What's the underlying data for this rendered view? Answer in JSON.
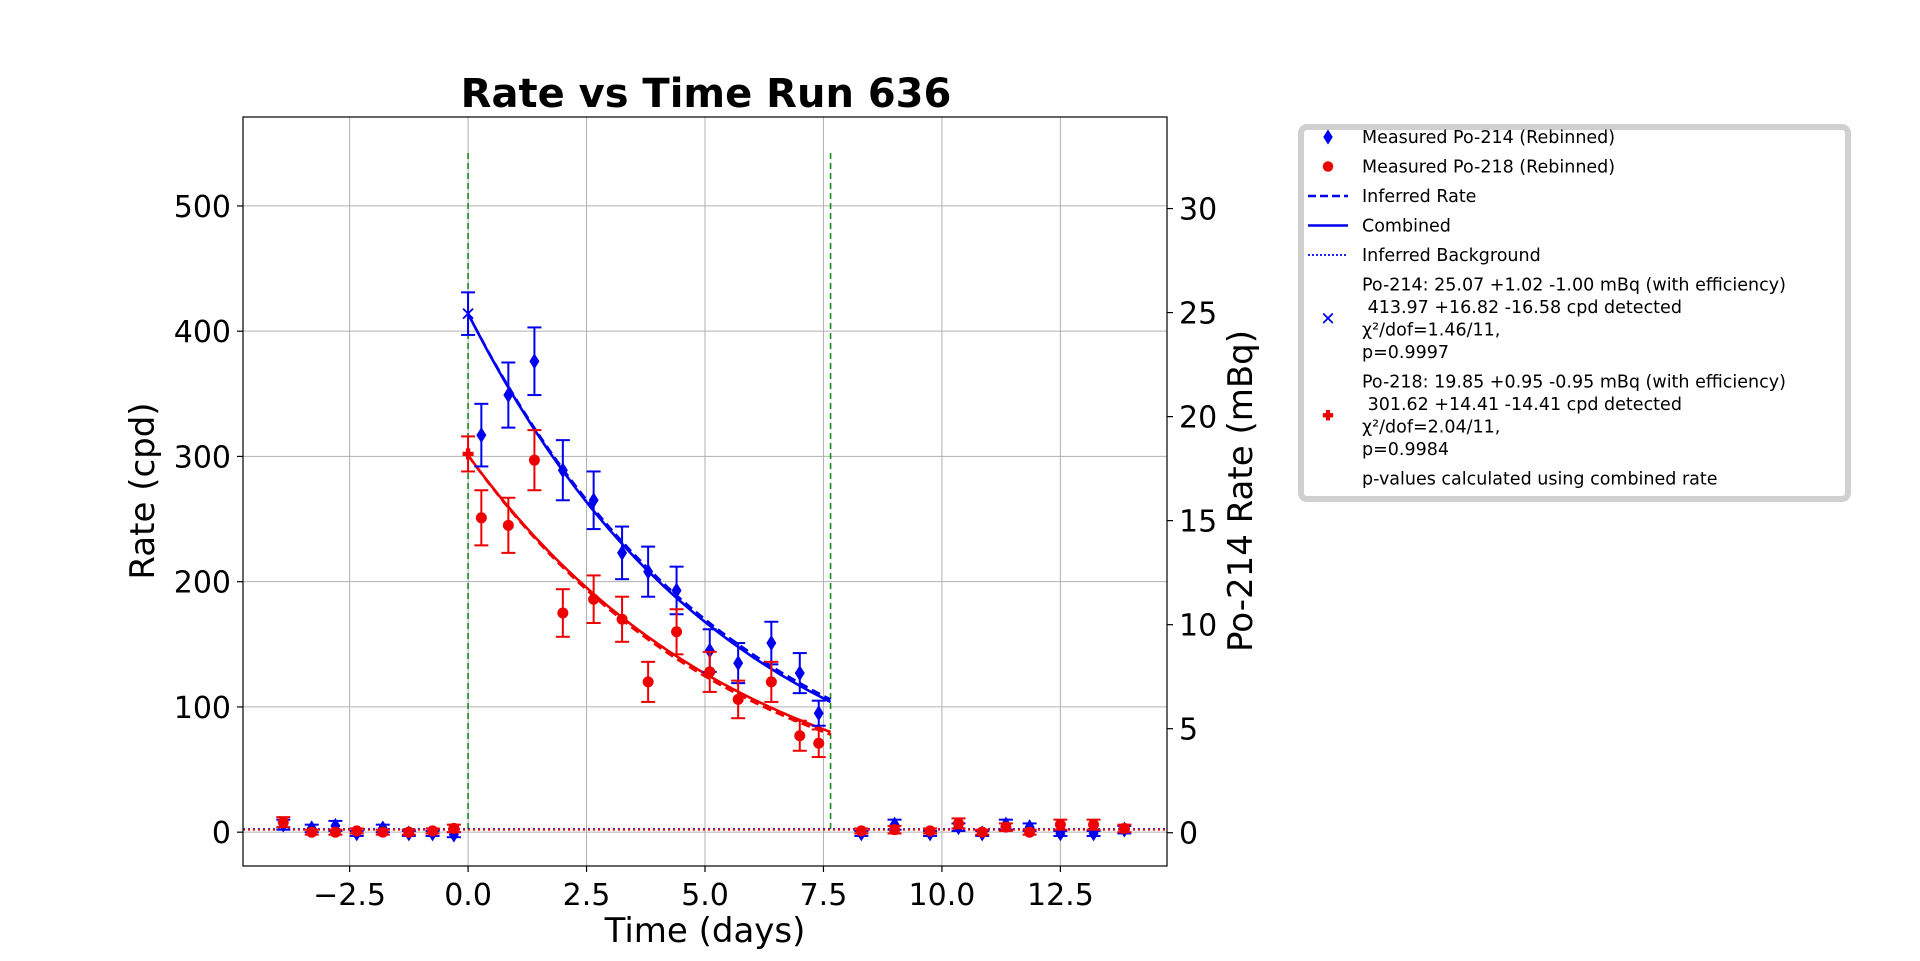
{
  "chart_data": {
    "type": "scatter",
    "title": "Rate vs Time Run 636",
    "xlabel": "Time (days)",
    "ylabel": "Rate (cpd)",
    "ylabel_right": "Po-214 Rate (mBq)",
    "xlim": [
      -4.75,
      14.75
    ],
    "ylim": [
      -27,
      571
    ],
    "ylim_right": [
      -1.6,
      34.4
    ],
    "x_ticks": [
      -2.5,
      0.0,
      2.5,
      5.0,
      7.5,
      10.0,
      12.5
    ],
    "x_tick_labels": [
      "−2.5",
      "0.0",
      "2.5",
      "5.0",
      "7.5",
      "10.0",
      "12.5"
    ],
    "y_ticks": [
      0,
      100,
      200,
      300,
      400,
      500
    ],
    "y_tick_labels": [
      "0",
      "100",
      "200",
      "300",
      "400",
      "500"
    ],
    "y_right_ticks": [
      0,
      5,
      10,
      15,
      20,
      25,
      30
    ],
    "y_right_tick_labels": [
      "0",
      "5",
      "10",
      "15",
      "20",
      "25",
      "30"
    ],
    "grid": true,
    "legend_position": "outside-right",
    "vlines": [
      0.0,
      7.65
    ],
    "series": [
      {
        "name": "Measured Po-214 (Rebinned)",
        "color": "#0000ee",
        "marker": "diamond",
        "points": [
          {
            "x": -3.9,
            "y": 6,
            "err": 4
          },
          {
            "x": -3.3,
            "y": 3,
            "err": 3
          },
          {
            "x": -2.8,
            "y": 5,
            "err": 4
          },
          {
            "x": -2.35,
            "y": -1,
            "err": 2
          },
          {
            "x": -1.8,
            "y": 3,
            "err": 3
          },
          {
            "x": -1.25,
            "y": -1,
            "err": 2
          },
          {
            "x": -0.75,
            "y": -1,
            "err": 2
          },
          {
            "x": -0.3,
            "y": -2,
            "err": 2
          },
          {
            "x": 0.28,
            "y": 317,
            "err": 25
          },
          {
            "x": 0.85,
            "y": 349,
            "err": 26
          },
          {
            "x": 1.4,
            "y": 376,
            "err": 27
          },
          {
            "x": 2.0,
            "y": 289,
            "err": 24
          },
          {
            "x": 2.65,
            "y": 265,
            "err": 23
          },
          {
            "x": 3.25,
            "y": 223,
            "err": 21
          },
          {
            "x": 3.8,
            "y": 208,
            "err": 20
          },
          {
            "x": 4.4,
            "y": 193,
            "err": 19
          },
          {
            "x": 5.1,
            "y": 145,
            "err": 17
          },
          {
            "x": 5.7,
            "y": 135,
            "err": 16
          },
          {
            "x": 6.4,
            "y": 151,
            "err": 17
          },
          {
            "x": 7.0,
            "y": 127,
            "err": 16
          },
          {
            "x": 7.4,
            "y": 95,
            "err": 10
          },
          {
            "x": 8.3,
            "y": -1,
            "err": 2
          },
          {
            "x": 9.0,
            "y": 6,
            "err": 4
          },
          {
            "x": 9.75,
            "y": -1,
            "err": 2
          },
          {
            "x": 10.35,
            "y": 4,
            "err": 3
          },
          {
            "x": 10.85,
            "y": -1,
            "err": 2
          },
          {
            "x": 11.35,
            "y": 6,
            "err": 4
          },
          {
            "x": 11.85,
            "y": 4,
            "err": 3
          },
          {
            "x": 12.5,
            "y": -1,
            "err": 2
          },
          {
            "x": 13.2,
            "y": -1,
            "err": 2
          },
          {
            "x": 13.85,
            "y": 2,
            "err": 3
          }
        ]
      },
      {
        "name": "Measured Po-218 (Rebinned)",
        "color": "#ee0000",
        "marker": "circle",
        "points": [
          {
            "x": -3.9,
            "y": 8,
            "err": 4
          },
          {
            "x": -3.3,
            "y": 0,
            "err": 2
          },
          {
            "x": -2.8,
            "y": 0,
            "err": 2
          },
          {
            "x": -2.35,
            "y": 1,
            "err": 2
          },
          {
            "x": -1.8,
            "y": 0,
            "err": 2
          },
          {
            "x": -1.25,
            "y": 0,
            "err": 2
          },
          {
            "x": -0.75,
            "y": 1,
            "err": 2
          },
          {
            "x": -0.3,
            "y": 3,
            "err": 3
          },
          {
            "x": 0.28,
            "y": 251,
            "err": 22
          },
          {
            "x": 0.85,
            "y": 245,
            "err": 22
          },
          {
            "x": 1.4,
            "y": 297,
            "err": 24
          },
          {
            "x": 2.0,
            "y": 175,
            "err": 19
          },
          {
            "x": 2.65,
            "y": 186,
            "err": 19
          },
          {
            "x": 3.25,
            "y": 170,
            "err": 18
          },
          {
            "x": 3.8,
            "y": 120,
            "err": 16
          },
          {
            "x": 4.4,
            "y": 160,
            "err": 18
          },
          {
            "x": 5.1,
            "y": 128,
            "err": 16
          },
          {
            "x": 5.7,
            "y": 106,
            "err": 15
          },
          {
            "x": 6.4,
            "y": 120,
            "err": 16
          },
          {
            "x": 7.0,
            "y": 77,
            "err": 12
          },
          {
            "x": 7.4,
            "y": 71,
            "err": 11
          },
          {
            "x": 8.3,
            "y": 1,
            "err": 2
          },
          {
            "x": 9.0,
            "y": 2,
            "err": 3
          },
          {
            "x": 9.75,
            "y": 1,
            "err": 2
          },
          {
            "x": 10.35,
            "y": 7,
            "err": 4
          },
          {
            "x": 10.85,
            "y": 0,
            "err": 2
          },
          {
            "x": 11.35,
            "y": 4,
            "err": 3
          },
          {
            "x": 11.85,
            "y": 0,
            "err": 2
          },
          {
            "x": 12.5,
            "y": 6,
            "err": 4
          },
          {
            "x": 13.2,
            "y": 6,
            "err": 4
          },
          {
            "x": 13.85,
            "y": 3,
            "err": 3
          }
        ]
      }
    ],
    "fit_curves": [
      {
        "label": "Inferred Rate",
        "color": "#0000ee",
        "style": "dashed",
        "x_start": 0.0,
        "x_end": 7.65,
        "y_start": 414,
        "y_end": 106
      },
      {
        "label": "Combined",
        "color": "#0000ee",
        "style": "solid",
        "x_start": 0.0,
        "x_end": 7.65,
        "y_start": 414,
        "y_end": 104
      },
      {
        "label": "Inferred Rate",
        "color": "#ee0000",
        "style": "dashed",
        "x_start": 0.0,
        "x_end": 7.65,
        "y_start": 301,
        "y_end": 78
      },
      {
        "label": "Combined",
        "color": "#ee0000",
        "style": "solid",
        "x_start": 0.0,
        "x_end": 7.65,
        "y_start": 301,
        "y_end": 80
      }
    ],
    "background_lines": [
      {
        "label": "Inferred Background",
        "color": "#0000ee",
        "style": "dotted",
        "y": 2.5
      },
      {
        "label": "Inferred Background",
        "color": "#ee0000",
        "style": "dotted",
        "y": 2.0
      }
    ],
    "initial_points": [
      {
        "name": "Po-214 initial",
        "color": "#0000ee",
        "marker": "x",
        "x": 0.0,
        "y": 414,
        "err_up": 17,
        "err_down": 17
      },
      {
        "name": "Po-218 initial",
        "color": "#ee0000",
        "marker": "plus",
        "x": 0.0,
        "y": 302,
        "err_up": 14,
        "err_down": 14
      }
    ],
    "legend": [
      {
        "kind": "diamond",
        "color": "#0000ee",
        "lines": [
          "Measured Po-214 (Rebinned)"
        ]
      },
      {
        "kind": "circle",
        "color": "#ee0000",
        "lines": [
          "Measured Po-218 (Rebinned)"
        ]
      },
      {
        "kind": "dashed",
        "color": "#0000ee",
        "lines": [
          "Inferred Rate"
        ]
      },
      {
        "kind": "solid",
        "color": "#0000ee",
        "lines": [
          "Combined"
        ]
      },
      {
        "kind": "dotted",
        "color": "#0000ee",
        "lines": [
          "Inferred Background"
        ]
      },
      {
        "kind": "x",
        "color": "#0000ee",
        "lines": [
          "Po-214: 25.07 +1.02 -1.00 mBq (with efficiency)",
          " 413.97 +16.82 -16.58 cpd detected",
          "χ²/dof=1.46/11,",
          "p=0.9997"
        ]
      },
      {
        "kind": "plus",
        "color": "#ee0000",
        "lines": [
          "Po-218: 19.85 +0.95 -0.95 mBq (with efficiency)",
          " 301.62 +14.41 -14.41 cpd detected",
          "χ²/dof=2.04/11,",
          "p=0.9984"
        ]
      },
      {
        "kind": "none",
        "color": "#000000",
        "lines": [
          "p-values calculated using combined rate"
        ]
      }
    ]
  }
}
